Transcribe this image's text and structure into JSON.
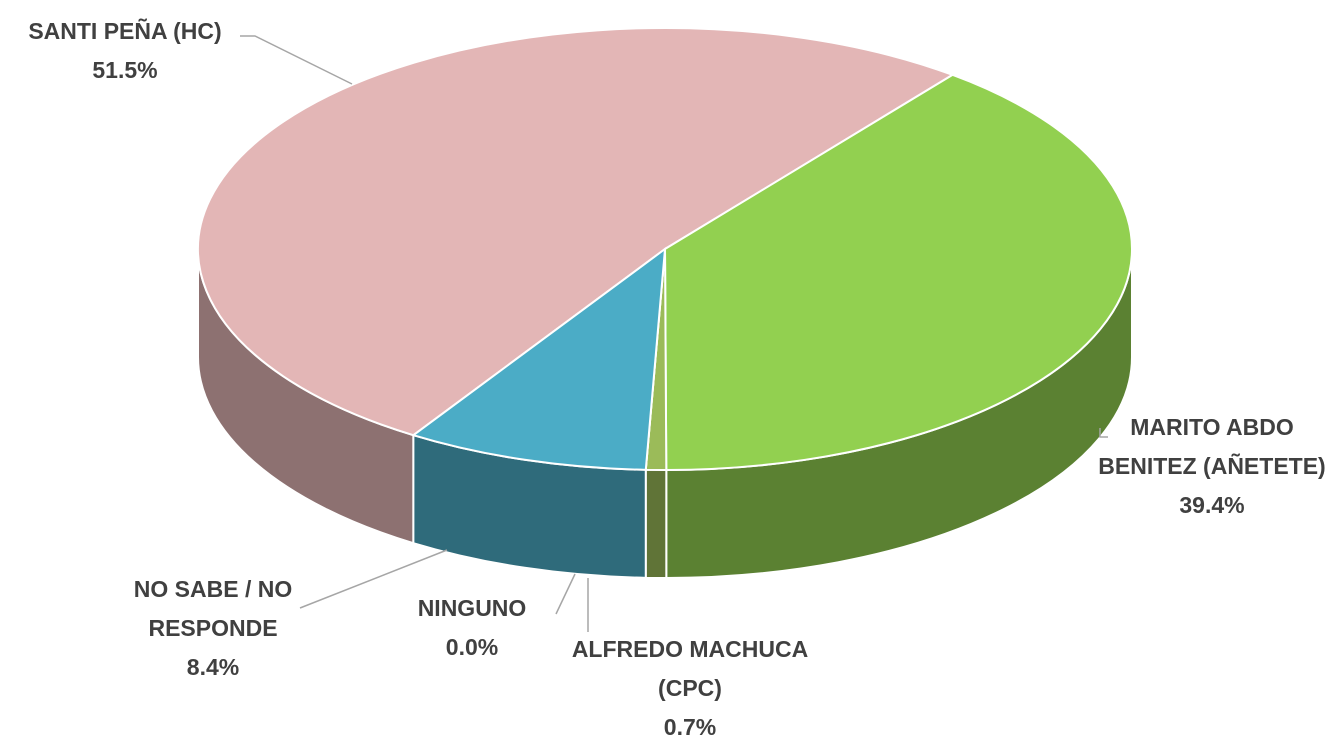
{
  "chart_data": {
    "type": "pie",
    "categories": [
      "SANTI PEÑA (HC)",
      "MARITO ABDO BENITEZ (AÑETETE)",
      "ALFREDO MACHUCA (CPC)",
      "NINGUNO",
      "NO SABE / NO RESPONDE"
    ],
    "values": [
      51.5,
      39.4,
      0.7,
      0.0,
      8.4
    ],
    "value_labels": [
      "51.5%",
      "39.4%",
      "0.7%",
      "0.0%",
      "8.4%"
    ],
    "colors": [
      "#e3b6b6",
      "#92d050",
      "#9bbb59",
      "#a5a5a5",
      "#4bacc6"
    ]
  }
}
